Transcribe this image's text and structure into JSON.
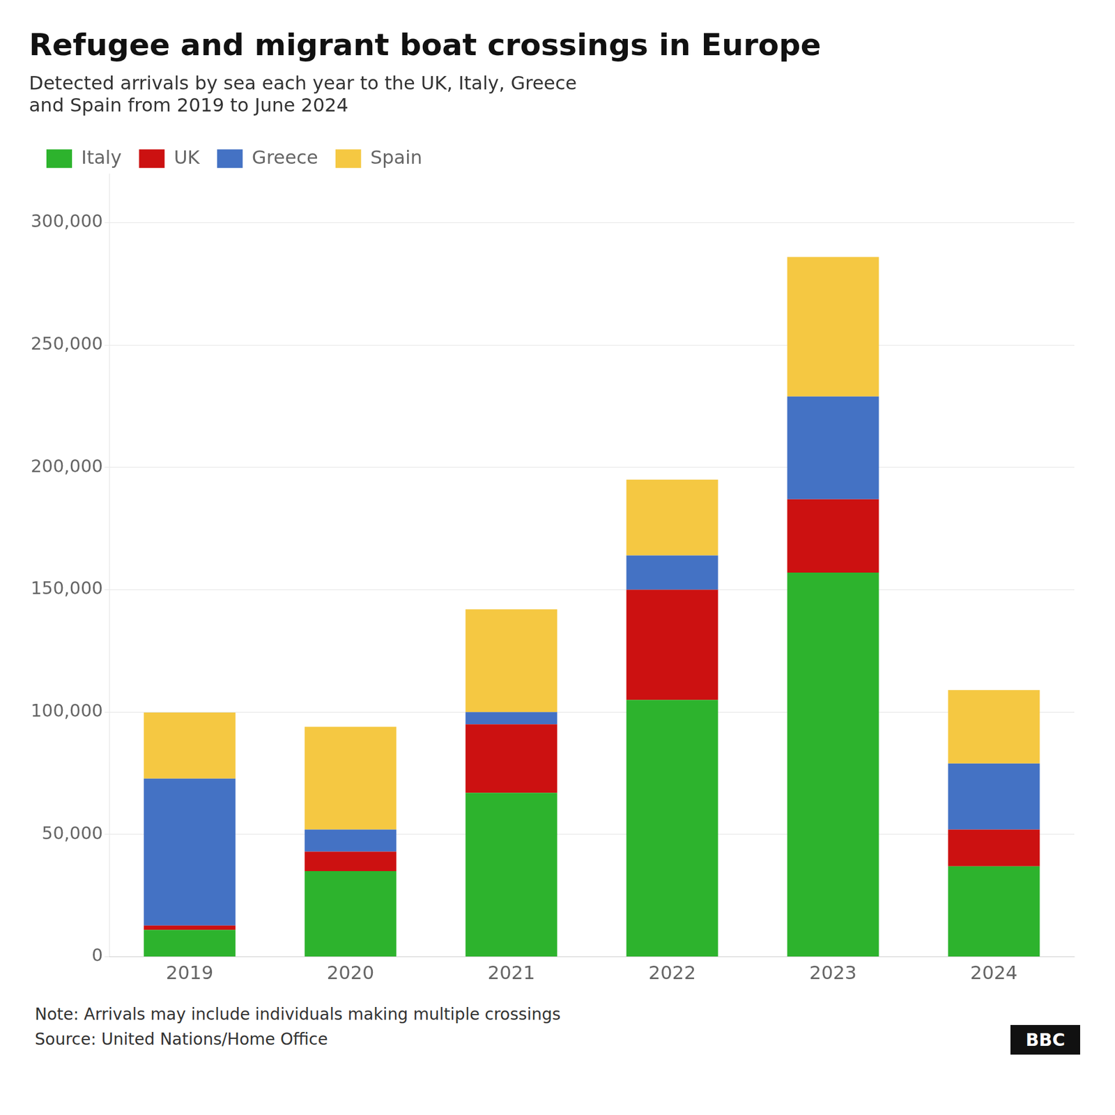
{
  "chart_data": {
    "type": "bar",
    "stacked": true,
    "title": "Refugee and migrant boat crossings in Europe",
    "subtitle": "Detected arrivals by sea each year to the UK, Italy, Greece\nand Spain from 2019 to June 2024",
    "categories": [
      "2019",
      "2020",
      "2021",
      "2022",
      "2023",
      "2024"
    ],
    "series": [
      {
        "name": "Italy",
        "color": "#2db32d",
        "values": [
          11000,
          35000,
          67000,
          105000,
          157000,
          37000
        ]
      },
      {
        "name": "UK",
        "color": "#cc1111",
        "values": [
          1800,
          8000,
          28000,
          45000,
          30000,
          15000
        ]
      },
      {
        "name": "Greece",
        "color": "#4472c4",
        "values": [
          60000,
          9000,
          5000,
          14000,
          42000,
          27000
        ]
      },
      {
        "name": "Spain",
        "color": "#f5c842",
        "values": [
          27000,
          42000,
          42000,
          31000,
          57000,
          30000
        ]
      }
    ],
    "ylim": [
      0,
      320000
    ],
    "yticks": [
      0,
      {
        "value": 50000,
        "label": "50,000"
      },
      {
        "value": 100000,
        "label": "100,000"
      },
      {
        "value": 150000,
        "label": "150,000"
      },
      {
        "value": 200000,
        "label": "200,000"
      },
      {
        "value": 250000,
        "label": "250,000"
      },
      {
        "value": 300000,
        "label": "300,000"
      }
    ],
    "grid": true,
    "legend": "top-left",
    "annotations": [
      "Note: Arrivals may include individuals making multiple crossings",
      "Source: United Nations/Home Office",
      "BBC"
    ]
  }
}
